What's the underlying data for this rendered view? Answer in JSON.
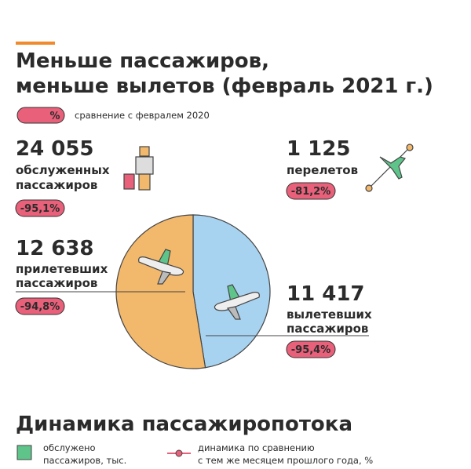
{
  "header": {
    "title_lines": [
      "Меньше пассажиров,",
      "меньше вылетов (февраль 2021 г.)"
    ]
  },
  "legend": {
    "badge": "%",
    "text": "сравнение с февралем 2020"
  },
  "stats": [
    {
      "value": "24 055",
      "lines": [
        "обслуженных",
        "пассажиров"
      ],
      "change": "-95,1%"
    },
    {
      "value": "1 125",
      "lines": [
        "перелетов"
      ],
      "change": "-81,2%"
    }
  ],
  "chart_data": {
    "type": "pie",
    "categories": [
      [
        "прилетевших",
        "пассажиров"
      ],
      [
        "вылетевших",
        "пассажиров"
      ]
    ],
    "values": [
      12638,
      11417
    ],
    "value_labels": [
      "12 638",
      "11 417"
    ],
    "change_labels": [
      "-94,8%",
      "-95,4%"
    ],
    "colors": [
      "#f2b86b",
      "#a8d3f0"
    ]
  },
  "section2": {
    "title": "Динамика пассажиропотока",
    "legend": [
      {
        "lines": [
          "обслужено",
          "пассажиров, тыс."
        ],
        "color": "#5ec48a"
      },
      {
        "lines": [
          "динамика по сравнению",
          "с тем же месяцем прошлого года, %"
        ],
        "color": "#e8607a"
      }
    ]
  }
}
